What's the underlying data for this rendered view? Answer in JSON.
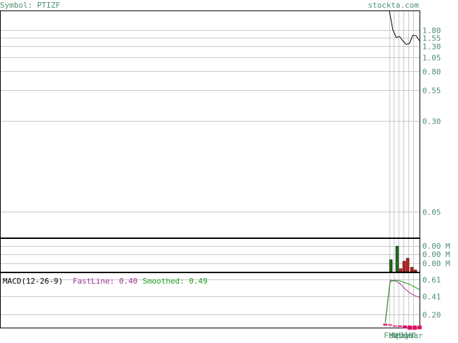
{
  "header": {
    "symbol_label": "Symbol: PTIZF",
    "site": "stockta.com"
  },
  "colors": {
    "axis_text": "#4f8f70",
    "grid": "#c8c8c8",
    "price_line": "#000000",
    "volume_up": "#1e6e1e",
    "volume_down": "#cc1a1a",
    "macd_fast": "#993399",
    "macd_smoothed": "#1e9e1e",
    "macd_hist": "#e0106a"
  },
  "chart_data": [
    {
      "type": "line",
      "name": "price",
      "scale": "log",
      "ylim": [
        0.03,
        2.6
      ],
      "y_ticks": [
        "1.80",
        "1.55",
        "1.30",
        "1.05",
        "0.80",
        "0.55",
        "0.30",
        "0.05"
      ],
      "y_tick_values": [
        1.8,
        1.55,
        1.3,
        1.05,
        0.8,
        0.55,
        0.3,
        0.05
      ],
      "x": [
        0,
        1,
        2,
        3,
        4,
        5,
        6,
        7,
        8,
        9
      ],
      "values": [
        2.6,
        1.8,
        1.55,
        1.58,
        1.45,
        1.35,
        1.38,
        1.62,
        1.6,
        1.45
      ]
    },
    {
      "type": "bar",
      "name": "volume",
      "y_ticks": [
        "0.00 M",
        "0.00 M",
        "0.00 M"
      ],
      "values": [
        0.4,
        0.85,
        0.1,
        0.35,
        0.45,
        0.15,
        0.06
      ],
      "directions": [
        "up",
        "up",
        "down",
        "down",
        "down",
        "down",
        "down"
      ]
    },
    {
      "type": "line",
      "name": "macd",
      "label": "MACD(12-26-9)",
      "fast_label": "FastLine: 0.40",
      "smoothed_label": "Smoothed: 0.49",
      "ylim": [
        0.05,
        0.68
      ],
      "y_ticks": [
        "0.61",
        "0.41",
        "0.20"
      ],
      "y_tick_values": [
        0.61,
        0.41,
        0.2
      ],
      "fast": [
        0.12,
        0.6,
        0.59,
        0.56,
        0.5,
        0.45,
        0.42,
        0.4
      ],
      "smoothed": [
        0.1,
        0.58,
        0.6,
        0.59,
        0.57,
        0.55,
        0.52,
        0.49
      ],
      "histogram": [
        0.04,
        0.02,
        -0.01,
        -0.03,
        -0.07,
        -0.1,
        -0.1,
        -0.09
      ]
    }
  ],
  "x_axis": {
    "labels": [
      "Feb",
      "Mar",
      "Apr",
      "May",
      "Jun",
      "Jul",
      "Mar"
    ]
  }
}
